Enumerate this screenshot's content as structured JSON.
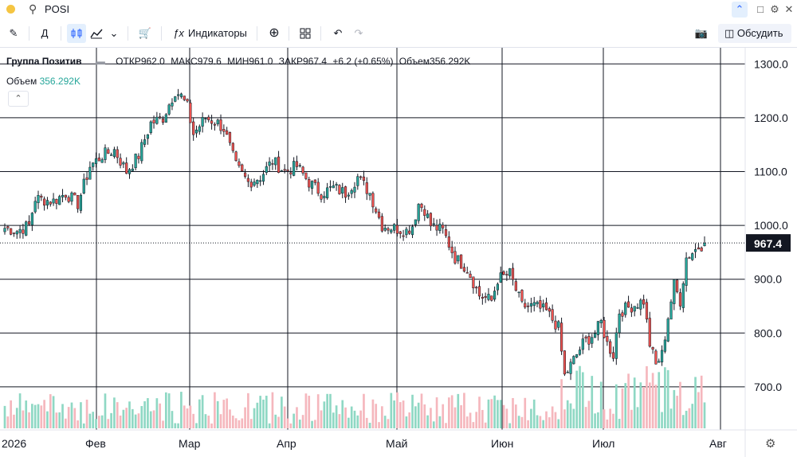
{
  "header": {
    "symbol": "POSI",
    "collapse_icon": "chevron-up-icon",
    "window_icons": [
      "square-icon",
      "gear-icon",
      "close-icon"
    ]
  },
  "toolbar": {
    "interval_label": "Д",
    "indicators_label": "Индикаторы",
    "discuss_label": "Обсудить",
    "icons": [
      "pencil-icon",
      "candles-icon",
      "area-chart-icon",
      "chevron-down-icon",
      "cart-icon",
      "fx-icon",
      "plus-circle-icon",
      "grid-icon",
      "undo-icon",
      "redo-icon",
      "camera-icon",
      "discuss-icon"
    ]
  },
  "legend": {
    "name": "Группа Позитив",
    "open": "ОТКР962.0",
    "high": "МАКС979.6",
    "low": "МИН961.0",
    "close": "ЗАКР967.4",
    "change": "+6.2 (+0.65%)",
    "volume": "Объем356.292K",
    "volume_label": "Объем",
    "volume_value": "356.292K"
  },
  "colors": {
    "up": "#26a69a",
    "down": "#ef5350",
    "vol_up": "#8fd8c4",
    "vol_down": "#f5b7bd",
    "grid": "#131722",
    "price_tag_bg": "#131722"
  },
  "chart_data": {
    "type": "candlestick",
    "x_ticks": [
      "2026",
      "Фев",
      "Мар",
      "Апр",
      "Май",
      "Июн",
      "Июл",
      "Авг"
    ],
    "y_ticks": [
      "1300.0",
      "1200.0",
      "1100.0",
      "1000.0",
      "900.0",
      "800.0",
      "700.0"
    ],
    "ylim": [
      620,
      1330
    ],
    "last_price": "967.4",
    "close_path": [
      [
        0,
        995
      ],
      [
        4,
        990
      ],
      [
        8,
        1000
      ],
      [
        10,
        1050
      ],
      [
        16,
        1045
      ],
      [
        20,
        1060
      ],
      [
        24,
        1040
      ],
      [
        28,
        1110
      ],
      [
        32,
        1130
      ],
      [
        36,
        1140
      ],
      [
        40,
        1100
      ],
      [
        44,
        1130
      ],
      [
        48,
        1190
      ],
      [
        52,
        1200
      ],
      [
        56,
        1250
      ],
      [
        58,
        1240
      ],
      [
        60,
        1220
      ],
      [
        62,
        1170
      ],
      [
        66,
        1200
      ],
      [
        70,
        1190
      ],
      [
        72,
        1180
      ],
      [
        76,
        1110
      ],
      [
        80,
        1080
      ],
      [
        84,
        1090
      ],
      [
        88,
        1120
      ],
      [
        92,
        1100
      ],
      [
        96,
        1110
      ],
      [
        100,
        1080
      ],
      [
        104,
        1060
      ],
      [
        108,
        1070
      ],
      [
        112,
        1060
      ],
      [
        116,
        1090
      ],
      [
        120,
        1060
      ],
      [
        124,
        1000
      ],
      [
        128,
        995
      ],
      [
        132,
        990
      ],
      [
        134,
        1000
      ],
      [
        136,
        1040
      ],
      [
        138,
        1030
      ],
      [
        140,
        1000
      ],
      [
        144,
        990
      ],
      [
        148,
        940
      ],
      [
        152,
        920
      ],
      [
        156,
        870
      ],
      [
        160,
        860
      ],
      [
        162,
        900
      ],
      [
        166,
        910
      ],
      [
        170,
        850
      ],
      [
        174,
        850
      ],
      [
        178,
        840
      ],
      [
        182,
        810
      ],
      [
        184,
        720
      ],
      [
        186,
        740
      ],
      [
        190,
        780
      ],
      [
        194,
        800
      ],
      [
        196,
        820
      ],
      [
        198,
        780
      ],
      [
        200,
        760
      ],
      [
        202,
        840
      ],
      [
        206,
        850
      ],
      [
        210,
        860
      ],
      [
        212,
        780
      ],
      [
        214,
        740
      ],
      [
        216,
        760
      ],
      [
        218,
        830
      ],
      [
        220,
        890
      ],
      [
        222,
        860
      ],
      [
        224,
        940
      ],
      [
        226,
        950
      ],
      [
        228,
        960
      ],
      [
        230,
        967.4
      ]
    ]
  }
}
